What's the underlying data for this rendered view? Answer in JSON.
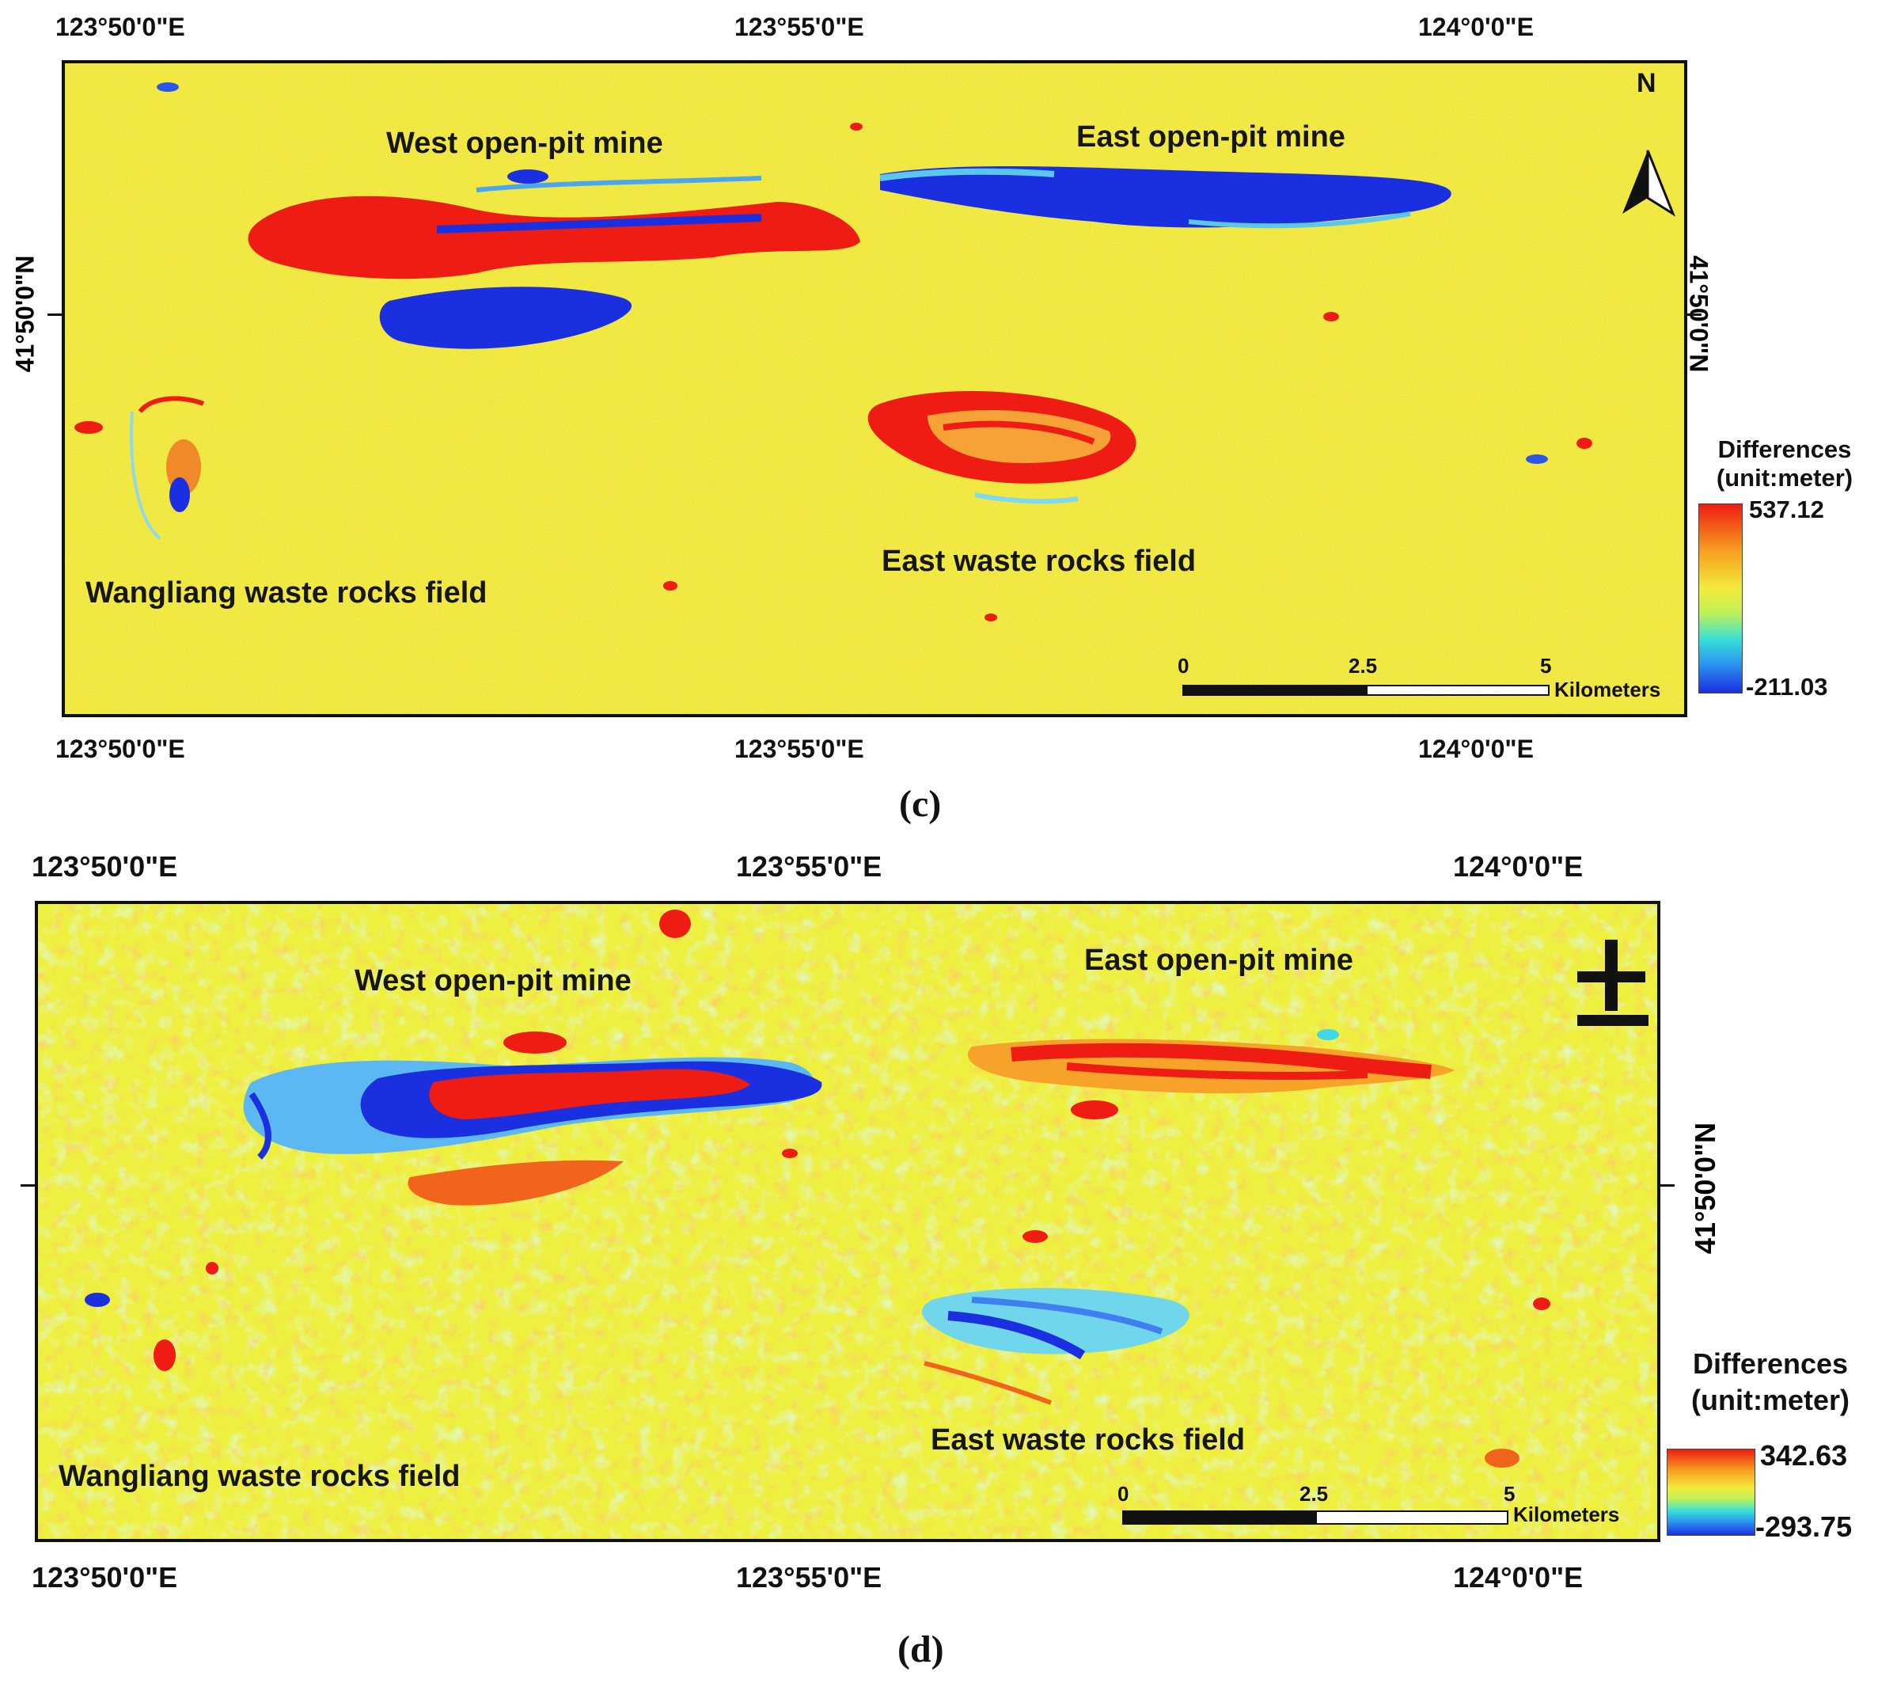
{
  "panels": [
    {
      "id": "c",
      "caption": "(c)",
      "top_coords": [
        "123°50'0\"E",
        "123°55'0\"E",
        "124°0'0\"E"
      ],
      "bottom_coords": [
        "123°50'0\"E",
        "123°55'0\"E",
        "124°0'0\"E"
      ],
      "left_coord": "41°50'0\"N",
      "right_coord": "41°50'0\"N",
      "north_label": "N",
      "features": [
        "West open-pit mine",
        "East open-pit mine",
        "East waste rocks field",
        "Wangliang waste rocks field"
      ],
      "legend": {
        "title": "Differences",
        "unit": "(unit:meter)",
        "max": "537.12",
        "min": "-211.03"
      },
      "scalebar": {
        "labels": [
          "0",
          "2.5",
          "5"
        ],
        "unit": "Kilometers"
      }
    },
    {
      "id": "d",
      "caption": "(d)",
      "top_coords": [
        "123°50'0\"E",
        "123°55'0\"E",
        "124°0'0\"E"
      ],
      "bottom_coords": [
        "123°50'0\"E",
        "123°55'0\"E",
        "124°0'0\"E"
      ],
      "right_coord": "41°50'0\"N",
      "features": [
        "West open-pit mine",
        "East open-pit mine",
        "East waste rocks field",
        "Wangliang waste rocks field"
      ],
      "legend": {
        "title": "Differences",
        "unit": "(unit:meter)",
        "max": "342.63",
        "min": "-293.75"
      },
      "scalebar": {
        "labels": [
          "0",
          "2.5",
          "5"
        ],
        "unit": "Kilometers"
      }
    }
  ],
  "colors": {
    "background": "#f2ec3c",
    "high": "#ee1c12",
    "low": "#1a2fe0",
    "mid_cyan": "#3fd6e8"
  }
}
